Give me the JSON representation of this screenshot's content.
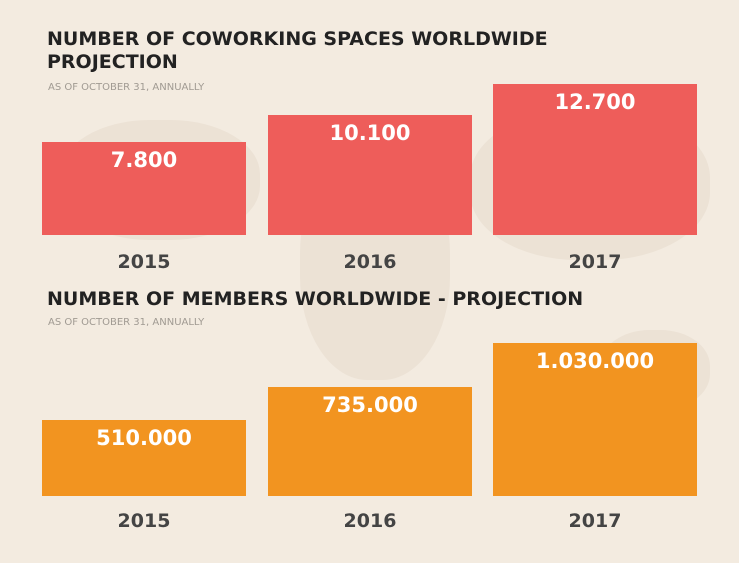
{
  "chart_data": [
    {
      "type": "bar",
      "title": "NUMBER OF COWORKING SPACES WORLDWIDE PROJECTION",
      "subtitle": "AS OF OCTOBER 31, ANNUALLY",
      "categories": [
        "2015",
        "2016",
        "2017"
      ],
      "values": [
        7800,
        10100,
        12700
      ],
      "value_labels": [
        "7.800",
        "10.100",
        "12.700"
      ],
      "color": "#ee5d5a"
    },
    {
      "type": "bar",
      "title": "NUMBER OF MEMBERS WORLDWIDE - PROJECTION",
      "subtitle": "AS OF OCTOBER 31, ANNUALLY",
      "categories": [
        "2015",
        "2016",
        "2017"
      ],
      "values": [
        510000,
        735000,
        1030000
      ],
      "value_labels": [
        "510.000",
        "735.000",
        "1.030.000"
      ],
      "color": "#f29420"
    }
  ]
}
